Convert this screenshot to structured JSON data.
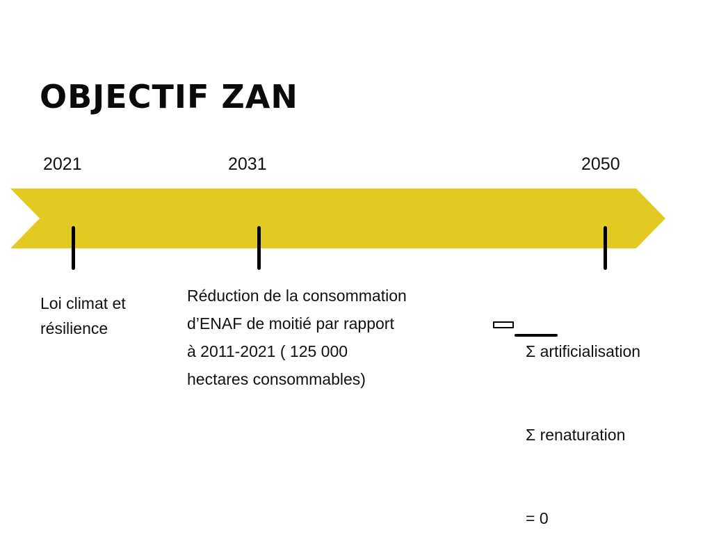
{
  "title": "OBJECTIF ZAN",
  "arrow_color": "#E3CA22",
  "milestones": [
    {
      "year": "2021",
      "text": "Loi climat et\nrésilience"
    },
    {
      "year": "2031",
      "text": "Réduction de la consommation\nd’ENAF de moitié par rapport\nà 2011-2021 ( 125 000\nhectares consommables)"
    },
    {
      "year": "2050",
      "lines": [
        "Σ artificialisation",
        "Σ renaturation",
        "= 0"
      ]
    }
  ]
}
